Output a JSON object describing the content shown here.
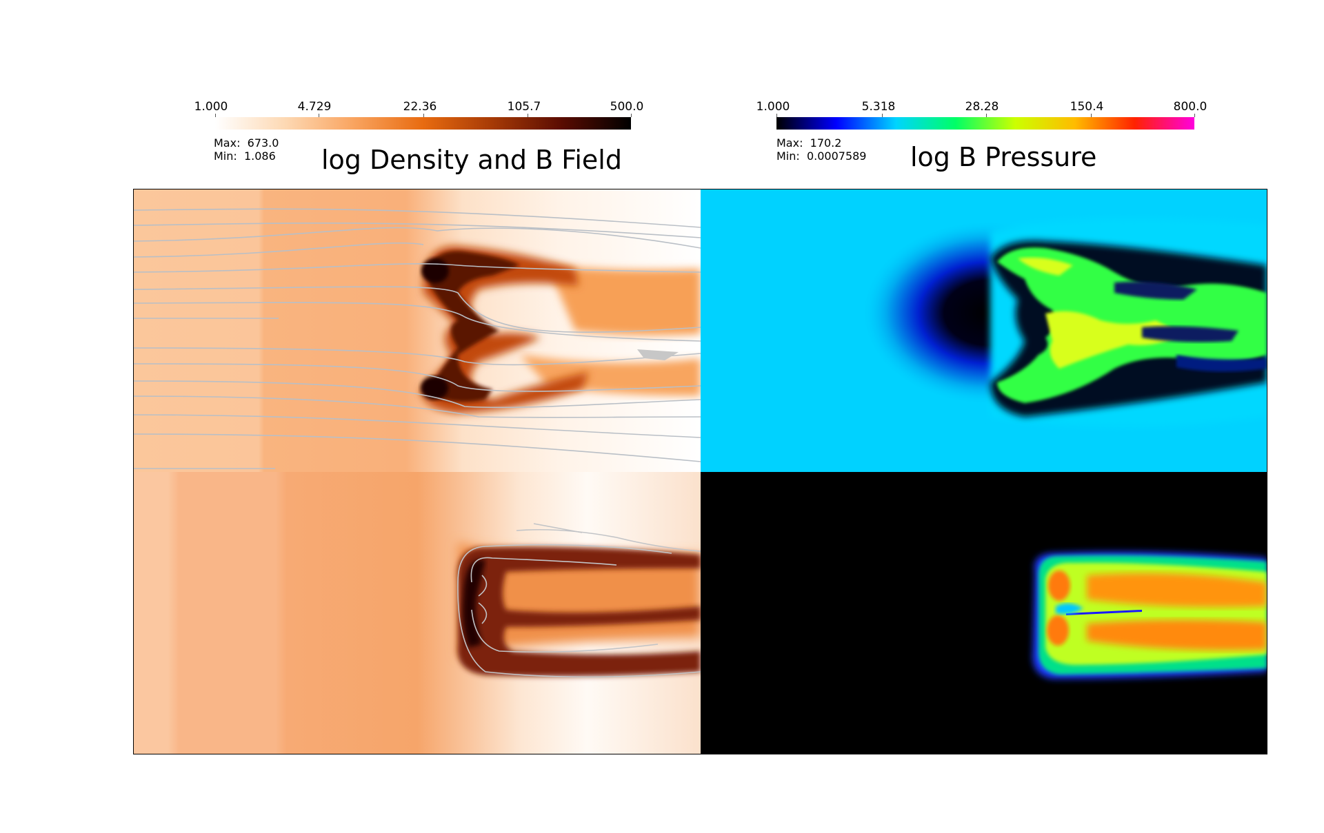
{
  "density_panel": {
    "title": "log Density and B Field",
    "colorbar_ticks": [
      "1.000",
      "4.729",
      "22.36",
      "105.7",
      "500.0"
    ],
    "colormap": [
      "#ffffff",
      "#fdd9b4",
      "#f9a460",
      "#e86b10",
      "#a63a06",
      "#5a0c02",
      "#000000"
    ],
    "max_label": "Max:",
    "max_value": "673.0",
    "min_label": "Min:",
    "min_value": "1.086",
    "field_line_color": "#b9bfc6"
  },
  "pressure_panel": {
    "title": "log B Pressure",
    "colorbar_ticks": [
      "1.000",
      "5.318",
      "28.28",
      "150.4",
      "800.0"
    ],
    "colormap": [
      "#000000",
      "#0000ff",
      "#00d4ff",
      "#00ff66",
      "#ccff00",
      "#ffbb00",
      "#ff2200",
      "#ff00dd"
    ],
    "max_label": "Max:",
    "max_value": "170.2",
    "min_label": "Min:",
    "min_value": "0.0007589"
  }
}
